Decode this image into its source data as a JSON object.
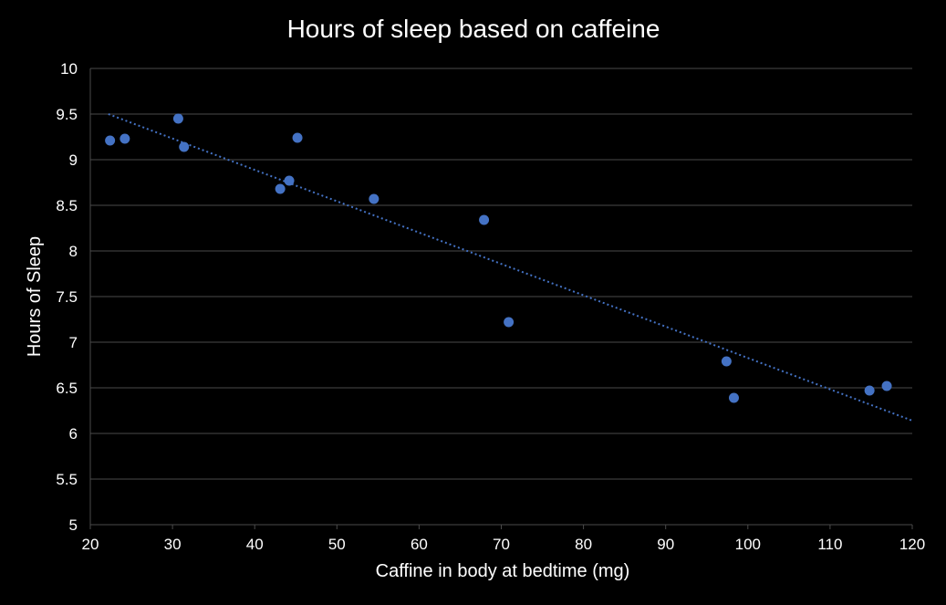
{
  "colors": {
    "background": "#000000",
    "text": "#ffffff",
    "gridline": "#4a4a4a",
    "marker": "#4472c4",
    "trendline": "#4472c4"
  },
  "chart_data": {
    "type": "scatter",
    "title": "Hours of sleep based on caffeine",
    "xlabel": "Caffine in body at bedtime (mg)",
    "ylabel": "Hours of Sleep",
    "xlim": [
      20,
      120
    ],
    "ylim": [
      5,
      10
    ],
    "xticks": [
      20,
      30,
      40,
      50,
      60,
      70,
      80,
      90,
      100,
      110,
      120
    ],
    "yticks": [
      5,
      5.5,
      6,
      6.5,
      7,
      7.5,
      8,
      8.5,
      9,
      9.5,
      10
    ],
    "grid": "horizontal",
    "legend": "none",
    "points": [
      {
        "x": 22.4,
        "y": 9.21
      },
      {
        "x": 24.2,
        "y": 9.23
      },
      {
        "x": 30.7,
        "y": 9.45
      },
      {
        "x": 31.4,
        "y": 9.14
      },
      {
        "x": 43.1,
        "y": 8.68
      },
      {
        "x": 44.2,
        "y": 8.77
      },
      {
        "x": 45.2,
        "y": 9.24
      },
      {
        "x": 54.5,
        "y": 8.57
      },
      {
        "x": 67.9,
        "y": 8.34
      },
      {
        "x": 70.9,
        "y": 7.22
      },
      {
        "x": 97.4,
        "y": 6.79
      },
      {
        "x": 98.3,
        "y": 6.39
      },
      {
        "x": 114.8,
        "y": 6.47
      },
      {
        "x": 116.9,
        "y": 6.52
      }
    ],
    "trendline": {
      "type": "linear",
      "style": "dotted",
      "x": [
        22.2,
        120
      ],
      "y": [
        9.5,
        6.14
      ]
    }
  }
}
